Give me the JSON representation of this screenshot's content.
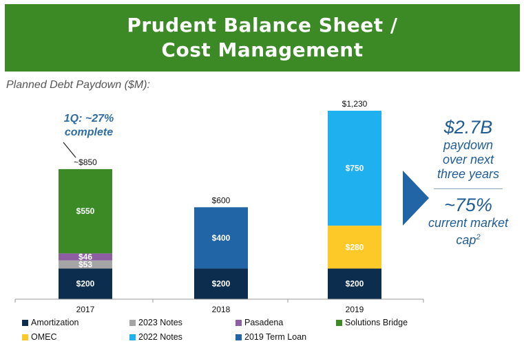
{
  "header": {
    "line1": "Prudent Balance Sheet /",
    "line2": "Cost Management"
  },
  "subtitle": "Planned Debt Paydown ($M):",
  "annotation": {
    "line1": "1Q:  ~27%",
    "line2": "complete"
  },
  "side_panel": {
    "big1": "$2.7B",
    "text1": [
      "paydown",
      "over next",
      "three years"
    ],
    "big2": "~75%",
    "text2_lines": [
      "current market"
    ],
    "text2_last": "cap",
    "text2_sup": "2"
  },
  "chart_data": {
    "type": "bar",
    "stacked": true,
    "categories": [
      "2017",
      "2018",
      "2019"
    ],
    "series": [
      {
        "name": "Amortization",
        "color": "#0d2d4e",
        "values": [
          200,
          200,
          200
        ],
        "labels": [
          "$200",
          "$200",
          "$200"
        ]
      },
      {
        "name": "2023 Notes",
        "color": "#a5a5a5",
        "values": [
          53,
          0,
          0
        ],
        "labels": [
          "$53",
          "",
          ""
        ]
      },
      {
        "name": "Pasadena",
        "color": "#8e5ea2",
        "values": [
          46,
          0,
          0
        ],
        "labels": [
          "$46",
          "",
          ""
        ]
      },
      {
        "name": "Solutions Bridge",
        "color": "#3b8a26",
        "values": [
          550,
          0,
          0
        ],
        "labels": [
          "$550",
          "",
          ""
        ]
      },
      {
        "name": "OMEC",
        "color": "#fcc929",
        "values": [
          0,
          0,
          280
        ],
        "labels": [
          "",
          "",
          "$280"
        ]
      },
      {
        "name": "2022 Notes",
        "color": "#1fb0ef",
        "values": [
          0,
          0,
          750
        ],
        "labels": [
          "",
          "",
          "$750"
        ]
      },
      {
        "name": "2019 Term Loan",
        "color": "#2265a7",
        "values": [
          0,
          400,
          0
        ],
        "labels": [
          "",
          "$400",
          ""
        ]
      }
    ],
    "totals": [
      "~$850",
      "$600",
      "$1,230"
    ],
    "ylim": [
      0,
      1230
    ],
    "legend_position": "bottom",
    "grid": false
  }
}
